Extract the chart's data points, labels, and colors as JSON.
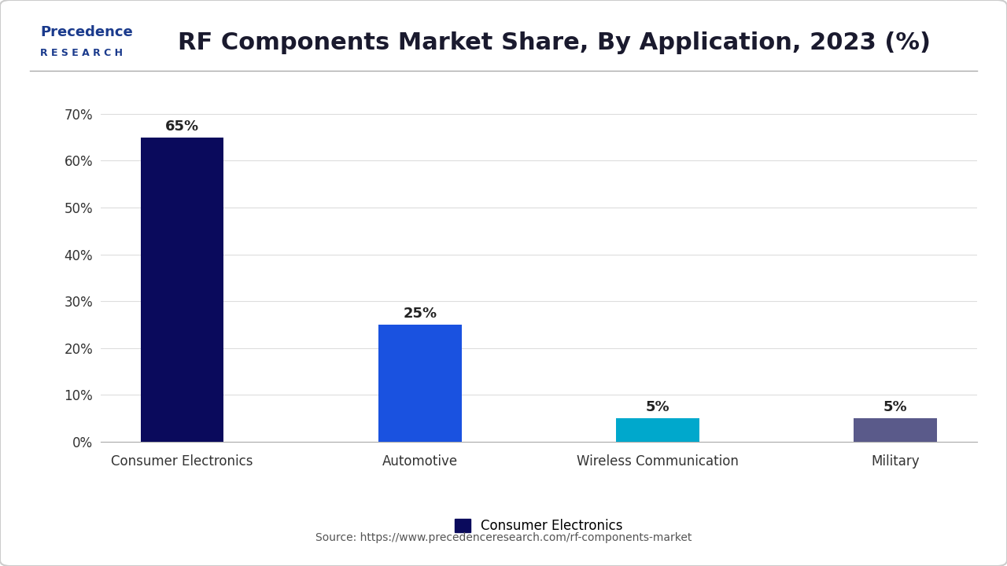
{
  "title": "RF Components Market Share, By Application, 2023 (%)",
  "categories": [
    "Consumer Electronics",
    "Automotive",
    "Wireless Communication",
    "Military"
  ],
  "values": [
    65,
    25,
    5,
    5
  ],
  "bar_colors": [
    "#0a0a5c",
    "#1a52e0",
    "#00a8cc",
    "#5a5a8a"
  ],
  "labels": [
    "65%",
    "25%",
    "5%",
    "5%"
  ],
  "yticks": [
    0,
    10,
    20,
    30,
    40,
    50,
    60,
    70
  ],
  "ytick_labels": [
    "0%",
    "10%",
    "20%",
    "30%",
    "40%",
    "50%",
    "60%",
    "70%"
  ],
  "ylim": [
    0,
    75
  ],
  "legend_label": "Consumer Electronics",
  "legend_color": "#0a0a5c",
  "source_text": "Source: https://www.precedenceresearch.com/rf-components-market",
  "title_fontsize": 22,
  "label_fontsize": 13,
  "tick_fontsize": 12,
  "background_color": "#ffffff",
  "plot_bg_color": "#f7f7f7",
  "grid_color": "#dddddd",
  "bar_width": 0.35,
  "outer_border_color": "#cccccc",
  "separator_line_color": "#aaaaaa"
}
